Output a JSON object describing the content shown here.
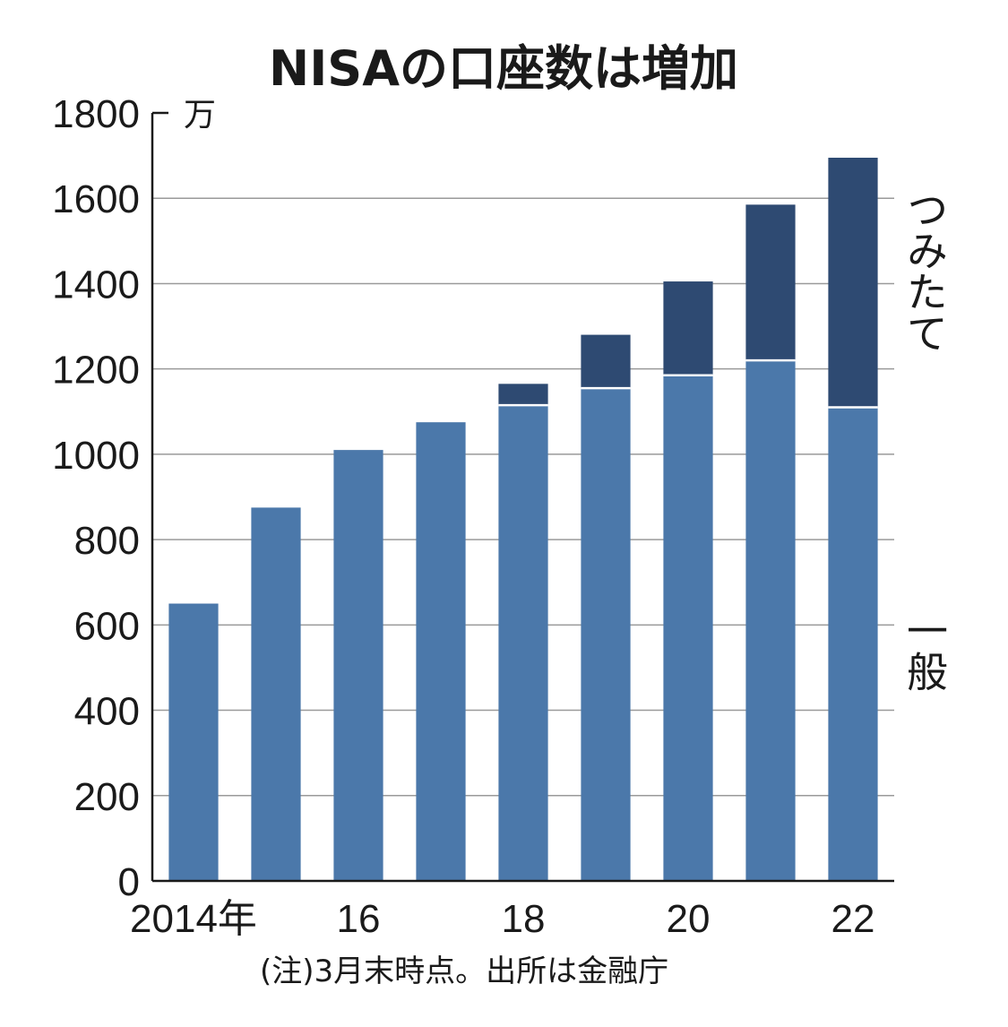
{
  "chart_data": {
    "type": "bar",
    "stacked": true,
    "title": "NISAの口座数は増加",
    "unit_label": "万",
    "ylim": [
      0,
      1800
    ],
    "y_ticks": [
      0,
      200,
      400,
      600,
      800,
      1000,
      1200,
      1400,
      1600,
      1800
    ],
    "grid": true,
    "years": [
      2014,
      2015,
      2016,
      2017,
      2018,
      2019,
      2020,
      2021,
      2022
    ],
    "x_tick_labels": [
      "2014年",
      "",
      "16",
      "",
      "18",
      "",
      "20",
      "",
      "22"
    ],
    "series": [
      {
        "name": "一般",
        "color": "#4b78aa",
        "values": [
          650,
          875,
          1010,
          1075,
          1115,
          1155,
          1185,
          1220,
          1110
        ]
      },
      {
        "name": "つみたて",
        "color": "#2e4a72",
        "values": [
          0,
          0,
          0,
          0,
          50,
          125,
          220,
          365,
          585
        ]
      }
    ],
    "legend_placement": "right (vertical labels beside bars)",
    "note": "(注)3月末時点。出所は金融庁"
  }
}
